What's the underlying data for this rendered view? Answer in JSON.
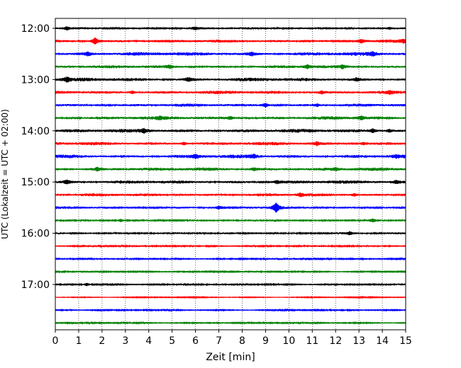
{
  "chart_data": {
    "type": "line",
    "title": "",
    "xlabel": "Zeit  [min]",
    "ylabel": "UTC (Lokalzeit = UTC + 02:00)",
    "xlim": [
      0,
      15
    ],
    "x_ticks": [
      0,
      1,
      2,
      3,
      4,
      5,
      6,
      7,
      8,
      9,
      10,
      11,
      12,
      13,
      14,
      15
    ],
    "x_tick_labels": [
      "0",
      "1",
      "2",
      "3",
      "4",
      "5",
      "6",
      "7",
      "8",
      "9",
      "10",
      "11",
      "12",
      "13",
      "14",
      "15"
    ],
    "y_tick_labels": [
      "12:00",
      "13:00",
      "14:00",
      "15:00",
      "16:00",
      "17:00"
    ],
    "y_tick_trace_index": [
      0,
      4,
      8,
      12,
      16,
      20
    ],
    "grid": "x",
    "color_cycle": [
      "#000000",
      "#ff0000",
      "#0000ff",
      "#008000"
    ],
    "traces": [
      {
        "start": "12:00",
        "amplitude": 0.35,
        "events": [
          [
            0.5,
            0.6
          ],
          [
            6.0,
            0.5
          ],
          [
            14.3,
            0.4
          ]
        ]
      },
      {
        "start": "12:15",
        "amplitude": 0.45,
        "events": [
          [
            1.7,
            1.4
          ],
          [
            13.1,
            0.7
          ],
          [
            14.9,
            0.6
          ]
        ]
      },
      {
        "start": "12:30",
        "amplitude": 0.55,
        "events": [
          [
            1.4,
            0.7
          ],
          [
            8.4,
            0.6
          ],
          [
            13.6,
            0.6
          ]
        ]
      },
      {
        "start": "12:45",
        "amplitude": 0.45,
        "events": [
          [
            4.9,
            0.5
          ],
          [
            10.8,
            0.7
          ],
          [
            12.3,
            0.6
          ]
        ]
      },
      {
        "start": "13:00",
        "amplitude": 0.55,
        "events": [
          [
            0.5,
            0.8
          ],
          [
            5.7,
            0.6
          ],
          [
            12.9,
            0.6
          ]
        ]
      },
      {
        "start": "13:15",
        "amplitude": 0.5,
        "events": [
          [
            3.3,
            0.6
          ],
          [
            11.4,
            0.5
          ],
          [
            14.3,
            0.5
          ]
        ]
      },
      {
        "start": "13:30",
        "amplitude": 0.45,
        "events": [
          [
            9.0,
            0.8
          ],
          [
            11.2,
            0.5
          ]
        ]
      },
      {
        "start": "13:45",
        "amplitude": 0.5,
        "events": [
          [
            4.5,
            0.5
          ],
          [
            7.5,
            0.6
          ],
          [
            13.1,
            0.7
          ]
        ]
      },
      {
        "start": "14:00",
        "amplitude": 0.55,
        "events": [
          [
            3.8,
            0.7
          ],
          [
            13.6,
            0.8
          ],
          [
            14.3,
            0.6
          ]
        ]
      },
      {
        "start": "14:15",
        "amplitude": 0.5,
        "events": [
          [
            5.5,
            0.6
          ],
          [
            11.2,
            0.6
          ],
          [
            13.2,
            0.5
          ]
        ]
      },
      {
        "start": "14:30",
        "amplitude": 0.55,
        "events": [
          [
            6.0,
            0.7
          ],
          [
            8.5,
            0.6
          ],
          [
            14.6,
            0.5
          ]
        ]
      },
      {
        "start": "14:45",
        "amplitude": 0.5,
        "events": [
          [
            1.8,
            0.6
          ],
          [
            8.5,
            0.5
          ],
          [
            12.0,
            0.5
          ]
        ]
      },
      {
        "start": "15:00",
        "amplitude": 0.5,
        "events": [
          [
            0.5,
            0.7
          ],
          [
            9.5,
            0.6
          ],
          [
            14.6,
            0.5
          ]
        ]
      },
      {
        "start": "15:15",
        "amplitude": 0.45,
        "events": [
          [
            10.5,
            0.6
          ],
          [
            12.8,
            0.5
          ]
        ]
      },
      {
        "start": "15:30",
        "amplitude": 0.4,
        "events": [
          [
            9.45,
            2.0
          ],
          [
            7.0,
            0.5
          ]
        ]
      },
      {
        "start": "15:45",
        "amplitude": 0.3,
        "events": [
          [
            2.8,
            0.6
          ],
          [
            13.6,
            0.5
          ]
        ]
      },
      {
        "start": "16:00",
        "amplitude": 0.3,
        "events": [
          [
            12.6,
            0.5
          ]
        ]
      },
      {
        "start": "16:15",
        "amplitude": 0.25,
        "events": [
          [
            14.1,
            0.3
          ]
        ]
      },
      {
        "start": "16:30",
        "amplitude": 0.25,
        "events": [
          [
            13.3,
            0.3
          ]
        ]
      },
      {
        "start": "16:45",
        "amplitude": 0.25,
        "events": [
          [
            5.5,
            0.3
          ],
          [
            10.6,
            0.3
          ]
        ]
      },
      {
        "start": "17:00",
        "amplitude": 0.25,
        "events": [
          [
            1.35,
            0.6
          ],
          [
            12.0,
            0.3
          ]
        ]
      },
      {
        "start": "17:15",
        "amplitude": 0.15,
        "events": []
      },
      {
        "start": "17:30",
        "amplitude": 0.2,
        "events": [
          [
            0.5,
            0.3
          ],
          [
            12.3,
            0.3
          ]
        ]
      },
      {
        "start": "17:45",
        "amplitude": 0.2,
        "events": [
          [
            6.8,
            0.3
          ],
          [
            12.6,
            0.3
          ]
        ]
      }
    ]
  }
}
